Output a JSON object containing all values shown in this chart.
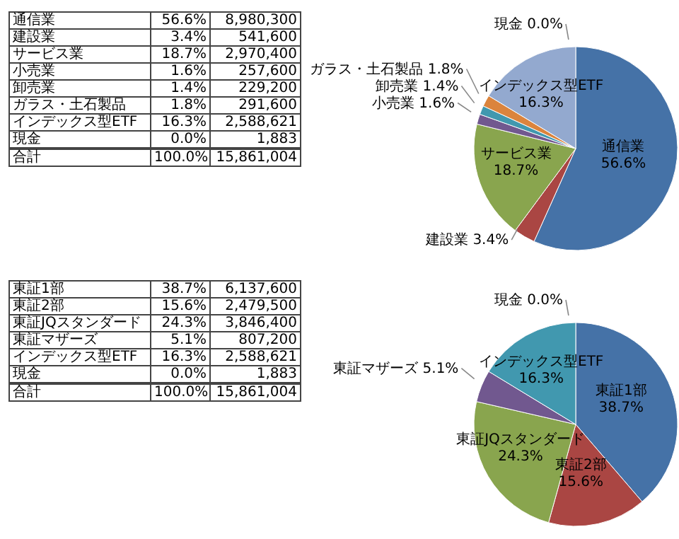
{
  "chart_data": [
    {
      "type": "other",
      "categories": [
        "通信業",
        "建設業",
        "サービス業",
        "小売業",
        "卸売業",
        "ガラス・土石製品",
        "インデックス型ETF",
        "現金"
      ],
      "value_labels": [
        "56.6%",
        "3.4%",
        "18.7%",
        "1.6%",
        "1.4%",
        "1.8%",
        "16.3%",
        "0.0%"
      ],
      "annotations": [
        "8,980,300",
        "541,600",
        "2,970,400",
        "257,600",
        "229,200",
        "291,600",
        "2,588,621",
        "1,883",
        "合計",
        "100.0%",
        "15,861,004"
      ]
    },
    {
      "type": "pie",
      "categories": [
        "通信業",
        "建設業",
        "サービス業",
        "小売業",
        "卸売業",
        "ガラス・土石製品",
        "インデックス型ETF",
        "現金"
      ],
      "values": [
        56.6,
        3.4,
        18.7,
        1.6,
        1.4,
        1.8,
        16.3,
        0.0
      ],
      "value_labels": [
        "56.6%",
        "3.4%",
        "18.7%",
        "1.6%",
        "1.4%",
        "1.8%",
        "16.3%",
        "0.0%"
      ],
      "colors": [
        "#4572a7",
        "#aa4643",
        "#89a54e",
        "#71588f",
        "#4198af",
        "#db843d",
        "#93a9cf",
        "#b9cd96"
      ]
    },
    {
      "type": "other",
      "categories": [
        "東証1部",
        "東証2部",
        "東証JQスタンダード",
        "東証マザーズ",
        "インデックス型ETF",
        "現金"
      ],
      "value_labels": [
        "38.7%",
        "15.6%",
        "24.3%",
        "5.1%",
        "16.3%",
        "0.0%"
      ],
      "annotations": [
        "6,137,600",
        "2,479,500",
        "3,846,400",
        "807,200",
        "2,588,621",
        "1,883",
        "合計",
        "100.0%",
        "15,861,004"
      ]
    },
    {
      "type": "pie",
      "categories": [
        "東証1部",
        "東証2部",
        "東証JQスタンダード",
        "東証マザーズ",
        "インデックス型ETF",
        "現金"
      ],
      "values": [
        38.7,
        15.6,
        24.3,
        5.1,
        16.3,
        0.0
      ],
      "value_labels": [
        "38.7%",
        "15.6%",
        "24.3%",
        "5.1%",
        "16.3%",
        "0.0%"
      ],
      "colors": [
        "#4572a7",
        "#aa4643",
        "#89a54e",
        "#71588f",
        "#4198af",
        "#db843d"
      ]
    }
  ]
}
